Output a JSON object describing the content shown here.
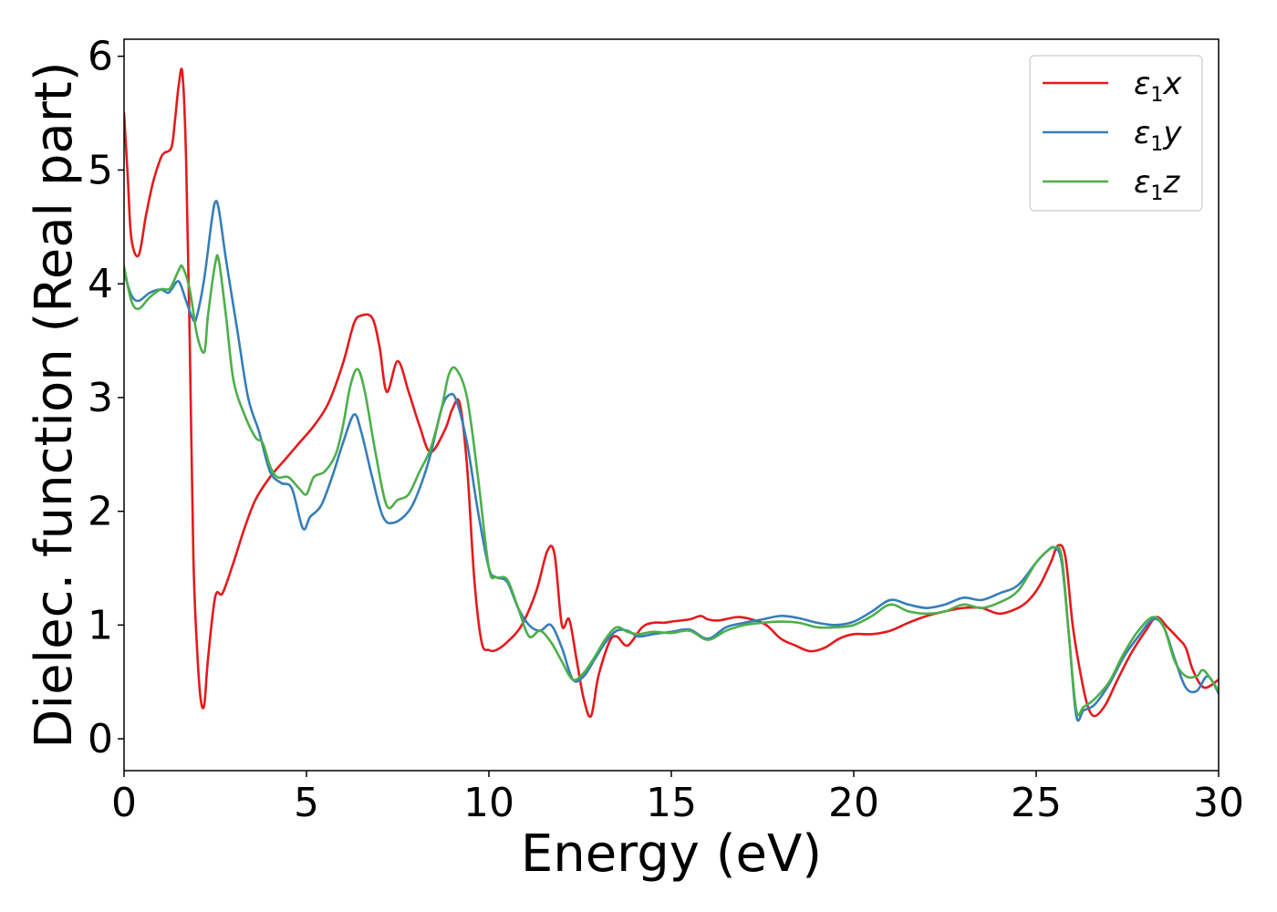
{
  "chart_data": {
    "type": "line",
    "xlabel": "Energy (eV)",
    "ylabel": "Dielec. function (Real part)",
    "xlim": [
      0,
      30
    ],
    "ylim": [
      -0.28,
      6.15
    ],
    "xticks": [
      0,
      5,
      10,
      15,
      20,
      25,
      30
    ],
    "yticks": [
      0,
      1,
      2,
      3,
      4,
      5,
      6
    ],
    "grid": false,
    "legend_position": "top-right",
    "series": [
      {
        "name": "x",
        "legend_prefix": "ε",
        "legend_sub": "1",
        "color": "#e41a1c",
        "x": [
          0,
          0.1,
          0.2,
          0.4,
          0.6,
          0.8,
          1.0,
          1.1,
          1.3,
          1.4,
          1.5,
          1.6,
          1.7,
          1.8,
          1.9,
          2.0,
          2.1,
          2.2,
          2.3,
          2.5,
          2.7,
          3.0,
          3.3,
          3.6,
          4.0,
          4.4,
          4.8,
          5.2,
          5.6,
          6.0,
          6.3,
          6.5,
          6.8,
          7.0,
          7.2,
          7.5,
          7.8,
          8.1,
          8.4,
          8.8,
          9.0,
          9.2,
          9.4,
          9.6,
          9.8,
          10.0,
          10.2,
          10.5,
          10.9,
          11.3,
          11.6,
          11.8,
          12.0,
          12.2,
          12.4,
          12.6,
          12.8,
          13.0,
          13.3,
          13.5,
          13.8,
          14.2,
          14.5,
          14.8,
          15.0,
          15.5,
          15.8,
          16.0,
          16.3,
          16.8,
          17.2,
          17.6,
          18.0,
          18.4,
          18.8,
          19.2,
          19.6,
          20.0,
          20.5,
          21.0,
          21.5,
          22.0,
          22.5,
          23.0,
          23.5,
          24.0,
          24.5,
          24.8,
          25.1,
          25.4,
          25.6,
          25.8,
          26.0,
          26.2,
          26.4,
          26.6,
          26.9,
          27.2,
          27.6,
          28.0,
          28.3,
          28.6,
          28.9,
          29.1,
          29.3,
          29.6,
          30.0
        ],
        "values": [
          5.5,
          4.95,
          4.4,
          4.25,
          4.6,
          4.9,
          5.1,
          5.15,
          5.2,
          5.45,
          5.75,
          5.85,
          5.1,
          3.5,
          1.6,
          0.8,
          0.35,
          0.3,
          0.7,
          1.25,
          1.28,
          1.55,
          1.85,
          2.1,
          2.3,
          2.45,
          2.6,
          2.75,
          2.95,
          3.3,
          3.65,
          3.72,
          3.7,
          3.45,
          3.05,
          3.32,
          3.05,
          2.75,
          2.52,
          2.72,
          2.9,
          2.95,
          2.4,
          1.4,
          0.85,
          0.78,
          0.78,
          0.85,
          1.0,
          1.3,
          1.65,
          1.62,
          1.0,
          1.05,
          0.7,
          0.35,
          0.2,
          0.55,
          0.85,
          0.9,
          0.82,
          0.98,
          1.02,
          1.02,
          1.03,
          1.05,
          1.08,
          1.05,
          1.04,
          1.07,
          1.05,
          1.0,
          0.88,
          0.82,
          0.77,
          0.8,
          0.88,
          0.92,
          0.92,
          0.95,
          1.02,
          1.08,
          1.12,
          1.15,
          1.15,
          1.1,
          1.15,
          1.22,
          1.35,
          1.55,
          1.7,
          1.6,
          1.0,
          0.6,
          0.3,
          0.2,
          0.3,
          0.5,
          0.75,
          0.95,
          1.07,
          0.98,
          0.88,
          0.8,
          0.6,
          0.45,
          0.52
        ]
      },
      {
        "name": "y",
        "legend_prefix": "ε",
        "legend_sub": "1",
        "color": "#377eb8",
        "x": [
          0,
          0.2,
          0.4,
          0.7,
          1.0,
          1.2,
          1.3,
          1.5,
          1.7,
          1.9,
          2.0,
          2.2,
          2.4,
          2.5,
          2.6,
          2.8,
          3.1,
          3.4,
          3.7,
          4.0,
          4.3,
          4.6,
          4.9,
          5.1,
          5.4,
          5.7,
          6.0,
          6.3,
          6.5,
          6.8,
          7.1,
          7.4,
          7.8,
          8.1,
          8.4,
          8.7,
          8.9,
          9.1,
          9.4,
          9.7,
          10.0,
          10.2,
          10.5,
          10.8,
          11.1,
          11.4,
          11.7,
          12.0,
          12.3,
          12.6,
          12.9,
          13.2,
          13.5,
          13.8,
          14.1,
          14.5,
          15.0,
          15.5,
          16.0,
          16.5,
          17.0,
          17.5,
          18.0,
          18.5,
          19.0,
          19.5,
          20.0,
          20.5,
          21.0,
          21.5,
          22.0,
          22.5,
          23.0,
          23.5,
          24.0,
          24.5,
          25.0,
          25.3,
          25.5,
          25.7,
          25.9,
          26.1,
          26.3,
          26.6,
          27.0,
          27.4,
          27.8,
          28.2,
          28.5,
          28.8,
          29.1,
          29.4,
          29.7,
          30.0
        ],
        "values": [
          4.1,
          3.9,
          3.85,
          3.92,
          3.95,
          3.92,
          3.95,
          4.02,
          3.85,
          3.68,
          3.72,
          4.05,
          4.55,
          4.72,
          4.65,
          4.2,
          3.6,
          3.0,
          2.7,
          2.35,
          2.25,
          2.2,
          1.85,
          1.95,
          2.05,
          2.3,
          2.6,
          2.85,
          2.7,
          2.3,
          1.95,
          1.9,
          2.0,
          2.2,
          2.5,
          2.9,
          3.02,
          2.98,
          2.6,
          2.0,
          1.5,
          1.42,
          1.38,
          1.15,
          1.0,
          0.95,
          1.0,
          0.8,
          0.52,
          0.55,
          0.7,
          0.85,
          0.95,
          0.95,
          0.9,
          0.92,
          0.94,
          0.96,
          0.88,
          0.98,
          1.02,
          1.05,
          1.08,
          1.06,
          1.02,
          1.0,
          1.03,
          1.12,
          1.22,
          1.18,
          1.15,
          1.18,
          1.24,
          1.22,
          1.28,
          1.35,
          1.55,
          1.65,
          1.68,
          1.55,
          0.9,
          0.2,
          0.25,
          0.3,
          0.48,
          0.72,
          0.9,
          1.05,
          0.98,
          0.7,
          0.45,
          0.42,
          0.55,
          0.4
        ]
      },
      {
        "name": "z",
        "legend_prefix": "ε",
        "legend_sub": "1",
        "color": "#4daf4a",
        "x": [
          0,
          0.2,
          0.4,
          0.7,
          1.0,
          1.2,
          1.3,
          1.5,
          1.6,
          1.8,
          2.0,
          2.2,
          2.3,
          2.5,
          2.6,
          2.8,
          3.0,
          3.3,
          3.6,
          3.8,
          4.0,
          4.2,
          4.5,
          4.8,
          5.0,
          5.2,
          5.5,
          5.8,
          6.0,
          6.2,
          6.4,
          6.6,
          6.9,
          7.2,
          7.5,
          7.8,
          8.1,
          8.4,
          8.7,
          8.9,
          9.1,
          9.4,
          9.7,
          10.0,
          10.2,
          10.5,
          10.8,
          11.1,
          11.4,
          11.7,
          12.0,
          12.3,
          12.6,
          12.9,
          13.2,
          13.5,
          13.8,
          14.1,
          14.5,
          15.0,
          15.5,
          16.0,
          16.5,
          17.0,
          17.5,
          18.0,
          18.5,
          19.0,
          19.5,
          20.0,
          20.5,
          21.0,
          21.5,
          22.0,
          22.5,
          23.0,
          23.5,
          24.0,
          24.5,
          25.0,
          25.3,
          25.5,
          25.7,
          25.9,
          26.1,
          26.3,
          26.6,
          27.0,
          27.4,
          27.8,
          28.2,
          28.5,
          28.8,
          29.1,
          29.4,
          29.6,
          30.0
        ],
        "values": [
          4.15,
          3.85,
          3.78,
          3.88,
          3.95,
          3.95,
          3.98,
          4.12,
          4.15,
          3.95,
          3.55,
          3.4,
          3.72,
          4.18,
          4.2,
          3.7,
          3.15,
          2.85,
          2.65,
          2.6,
          2.4,
          2.3,
          2.3,
          2.2,
          2.15,
          2.3,
          2.35,
          2.5,
          2.75,
          3.1,
          3.25,
          3.05,
          2.5,
          2.05,
          2.1,
          2.15,
          2.35,
          2.55,
          2.9,
          3.2,
          3.25,
          3.0,
          2.3,
          1.5,
          1.42,
          1.4,
          1.15,
          0.9,
          0.95,
          0.85,
          0.68,
          0.52,
          0.58,
          0.72,
          0.88,
          0.98,
          0.94,
          0.92,
          0.94,
          0.93,
          0.95,
          0.87,
          0.95,
          1.0,
          1.02,
          1.03,
          1.02,
          0.98,
          0.98,
          1.0,
          1.08,
          1.18,
          1.12,
          1.1,
          1.12,
          1.18,
          1.15,
          1.2,
          1.3,
          1.55,
          1.65,
          1.68,
          1.6,
          0.9,
          0.25,
          0.28,
          0.35,
          0.5,
          0.75,
          0.95,
          1.07,
          0.98,
          0.68,
          0.55,
          0.55,
          0.6,
          0.42
        ]
      }
    ]
  }
}
